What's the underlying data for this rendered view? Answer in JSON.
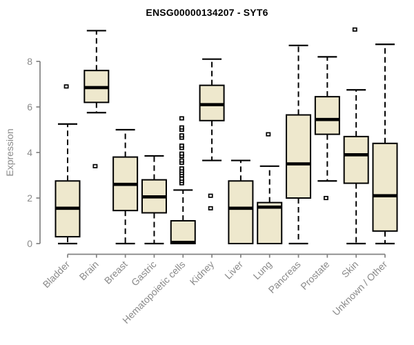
{
  "header": {
    "title": "ENSG00000134207 - SYT6"
  },
  "chart_data": {
    "type": "box",
    "title": "ENSG00000134207 - SYT6",
    "xlabel": "",
    "ylabel": "Expression",
    "yticks": [
      0,
      2,
      4,
      6,
      8
    ],
    "ylim": [
      0,
      9.6
    ],
    "grid": false,
    "legend": "none",
    "colors": {
      "box_fill": "#EEE8CD",
      "box_stroke": "#000000",
      "median": "#000000",
      "whisker": "#000000",
      "axis": "#828282",
      "tick_label": "#8a8a8a",
      "title": "#000000",
      "background": "#ffffff"
    },
    "categories": [
      "Bladder",
      "Brain",
      "Breast",
      "Gastric",
      "Hematopoietic cells",
      "Kidney",
      "Liver",
      "Lung",
      "Pancreas",
      "Prostate",
      "Skin",
      "Unknown / Other"
    ],
    "series": [
      {
        "category": "Bladder",
        "whisker_low": 0,
        "q1": 0.3,
        "median": 1.55,
        "q3": 2.75,
        "whisker_high": 5.25,
        "outliers": [
          6.9
        ]
      },
      {
        "category": "Brain",
        "whisker_low": 5.75,
        "q1": 6.2,
        "median": 6.85,
        "q3": 7.6,
        "whisker_high": 9.35,
        "outliers": [
          3.4
        ]
      },
      {
        "category": "Breast",
        "whisker_low": 0,
        "q1": 1.45,
        "median": 2.6,
        "q3": 3.8,
        "whisker_high": 5.0,
        "outliers": []
      },
      {
        "category": "Gastric",
        "whisker_low": 0,
        "q1": 1.35,
        "median": 2.05,
        "q3": 2.8,
        "whisker_high": 3.85,
        "outliers": []
      },
      {
        "category": "Hematopoietic cells",
        "whisker_low": 0,
        "q1": 0,
        "median": 0.05,
        "q3": 1.0,
        "whisker_high": 2.35,
        "outliers": [
          2.65,
          2.75,
          2.85,
          3.0,
          3.1,
          3.2,
          3.3,
          3.55,
          3.65,
          3.85,
          3.95,
          4.2,
          4.3,
          4.65,
          4.75,
          5.0,
          5.1,
          5.5
        ]
      },
      {
        "category": "Kidney",
        "whisker_low": 3.65,
        "q1": 5.4,
        "median": 6.1,
        "q3": 6.95,
        "whisker_high": 8.1,
        "outliers": [
          2.1,
          1.55
        ]
      },
      {
        "category": "Liver",
        "whisker_low": 0,
        "q1": 0,
        "median": 1.55,
        "q3": 2.75,
        "whisker_high": 3.65,
        "outliers": []
      },
      {
        "category": "Lung",
        "whisker_low": 0,
        "q1": 0,
        "median": 1.6,
        "q3": 1.8,
        "whisker_high": 3.4,
        "outliers": [
          4.8
        ]
      },
      {
        "category": "Pancreas",
        "whisker_low": 0,
        "q1": 2.0,
        "median": 3.5,
        "q3": 5.65,
        "whisker_high": 8.7,
        "outliers": []
      },
      {
        "category": "Prostate",
        "whisker_low": 2.75,
        "q1": 4.8,
        "median": 5.45,
        "q3": 6.45,
        "whisker_high": 8.2,
        "outliers": [
          2.0
        ]
      },
      {
        "category": "Skin",
        "whisker_low": 0,
        "q1": 2.65,
        "median": 3.9,
        "q3": 4.7,
        "whisker_high": 6.75,
        "outliers": [
          9.4
        ]
      },
      {
        "category": "Unknown / Other",
        "whisker_low": 0,
        "q1": 0.55,
        "median": 2.1,
        "q3": 4.4,
        "whisker_high": 8.75,
        "outliers": []
      }
    ]
  }
}
